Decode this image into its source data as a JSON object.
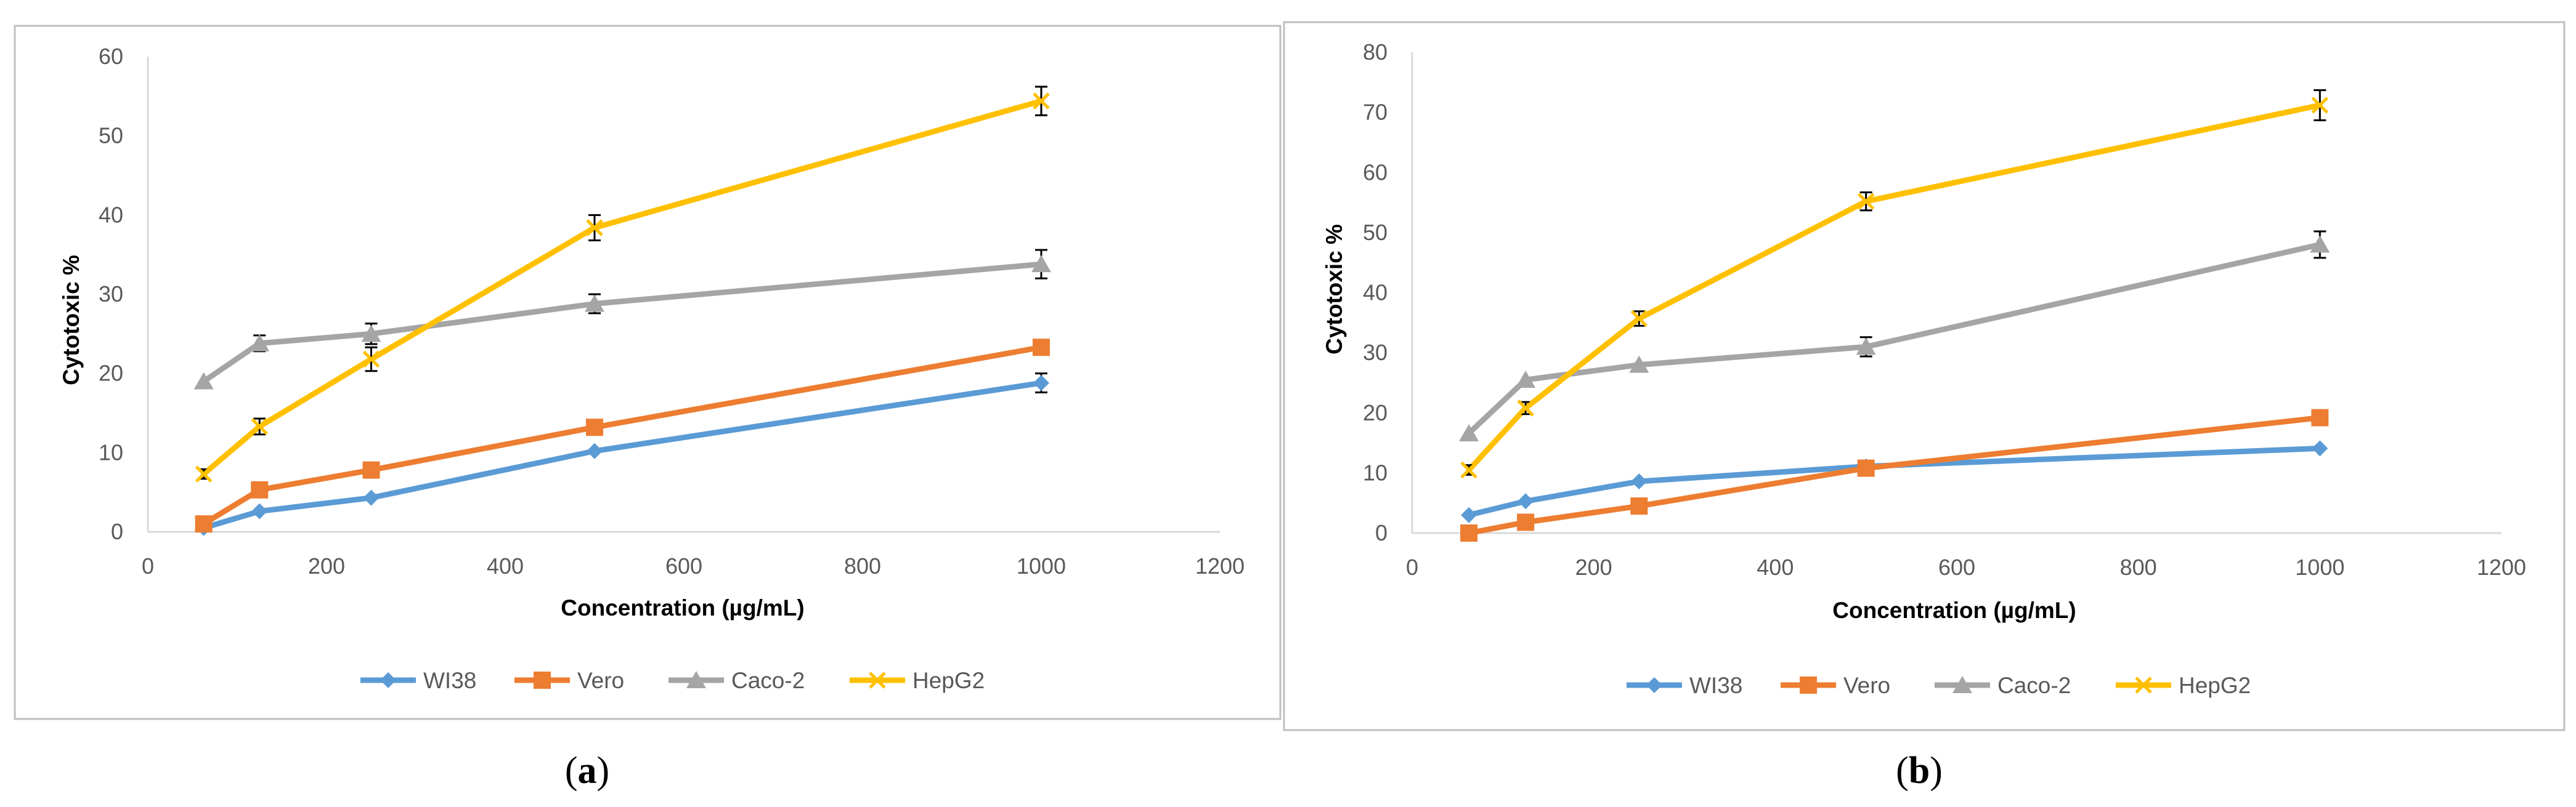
{
  "chart_data": [
    {
      "type": "line",
      "panel": "a",
      "caption_open": "(",
      "caption_letter": "a",
      "caption_close": ")",
      "title": "",
      "xlabel": "Concentration (µg/mL)",
      "ylabel": "Cytotoxic %",
      "xlim": [
        0,
        1200
      ],
      "ylim": [
        0,
        60
      ],
      "xticks": [
        0,
        200,
        400,
        600,
        800,
        1000,
        1200
      ],
      "yticks": [
        0,
        10,
        20,
        30,
        40,
        50,
        60
      ],
      "x": [
        62.5,
        125,
        250,
        500,
        1000
      ],
      "legend_position": "bottom",
      "grid": false,
      "series": [
        {
          "name": "WI38",
          "marker": "diamond",
          "color": "#5B9BD5",
          "values": [
            0.5,
            2.6,
            4.3,
            10.2,
            18.8
          ],
          "errors": [
            0,
            0,
            0,
            0,
            1.2
          ]
        },
        {
          "name": "Vero",
          "marker": "square",
          "color": "#ED7D31",
          "values": [
            1.0,
            5.3,
            7.8,
            13.2,
            23.3
          ],
          "errors": [
            0,
            0,
            0,
            0,
            0
          ]
        },
        {
          "name": "Caco-2",
          "marker": "triangle",
          "color": "#A5A5A5",
          "values": [
            19.0,
            23.8,
            25.0,
            28.8,
            33.8
          ],
          "errors": [
            0,
            1.0,
            1.3,
            1.2,
            1.8
          ]
        },
        {
          "name": "HepG2",
          "marker": "x",
          "color": "#FFC000",
          "values": [
            7.3,
            13.3,
            21.8,
            38.4,
            54.4
          ],
          "errors": [
            0.6,
            1.0,
            1.5,
            1.6,
            1.8
          ]
        }
      ]
    },
    {
      "type": "line",
      "panel": "b",
      "caption_open": "(",
      "caption_letter": "b",
      "caption_close": ")",
      "title": "",
      "xlabel": "Concentration (µg/mL)",
      "ylabel": "Cytotoxic %",
      "xlim": [
        0,
        1200
      ],
      "ylim": [
        0,
        80
      ],
      "xticks": [
        0,
        200,
        400,
        600,
        800,
        1000,
        1200
      ],
      "yticks": [
        0,
        10,
        20,
        30,
        40,
        50,
        60,
        70,
        80
      ],
      "x": [
        62.5,
        125,
        250,
        500,
        1000
      ],
      "legend_position": "bottom",
      "grid": false,
      "series": [
        {
          "name": "WI38",
          "marker": "diamond",
          "color": "#5B9BD5",
          "values": [
            3.0,
            5.3,
            8.6,
            11.1,
            14.1
          ],
          "errors": [
            0,
            0,
            0,
            0,
            0
          ]
        },
        {
          "name": "Vero",
          "marker": "square",
          "color": "#ED7D31",
          "values": [
            0.0,
            1.8,
            4.5,
            10.8,
            19.2
          ],
          "errors": [
            0,
            0,
            0,
            0,
            0
          ]
        },
        {
          "name": "Caco-2",
          "marker": "triangle",
          "color": "#A5A5A5",
          "values": [
            16.6,
            25.5,
            28.0,
            31.0,
            48.0
          ],
          "errors": [
            0,
            0,
            0,
            1.6,
            2.2
          ]
        },
        {
          "name": "HepG2",
          "marker": "x",
          "color": "#FFC000",
          "values": [
            10.5,
            20.8,
            35.7,
            55.2,
            71.2
          ],
          "errors": [
            0.8,
            1.0,
            1.2,
            1.5,
            2.5
          ]
        }
      ]
    }
  ]
}
